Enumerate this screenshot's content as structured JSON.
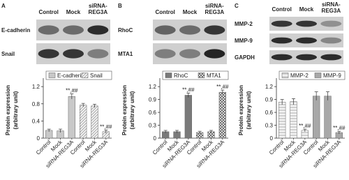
{
  "chart_data": [
    {
      "type": "bar",
      "panel": "A",
      "blot": {
        "lanes": [
          [
            "Control"
          ],
          [
            "Mock"
          ],
          [
            "siRNA-",
            "REG3A"
          ]
        ],
        "rows": [
          "E-cadherin",
          "Snail"
        ]
      },
      "ylabel": [
        "Protein expression",
        "(arbitrary unit)"
      ],
      "categories": [
        "Control",
        "Mock",
        "siRNA-REG3A",
        "Control",
        "Mock",
        "siRNA-REG3A"
      ],
      "series": [
        {
          "name": "E-cadherin",
          "color": "#c8c8c8",
          "pattern": null,
          "values": [
            0.18,
            0.17,
            0.97,
            null,
            null,
            null
          ],
          "errors": [
            0.03,
            0.04,
            0.06,
            null,
            null,
            null
          ],
          "marks": [
            null,
            null,
            "**,##",
            null,
            null,
            null
          ]
        },
        {
          "name": "Snail",
          "color": "#9a9a9a",
          "pattern": "diagonal",
          "values": [
            null,
            null,
            null,
            0.77,
            0.75,
            0.15
          ],
          "errors": [
            null,
            null,
            null,
            0.04,
            0.04,
            0.04
          ],
          "marks": [
            null,
            null,
            null,
            null,
            null,
            "**,##"
          ]
        }
      ],
      "ylim": [
        0,
        1.3
      ],
      "yticks": [
        0,
        0.4,
        0.8,
        1.2
      ]
    },
    {
      "type": "bar",
      "panel": "B",
      "blot": {
        "lanes": [
          [
            "Control"
          ],
          [
            "Mock"
          ],
          [
            "siRNA-",
            "REG3A"
          ]
        ],
        "rows": [
          "RhoC",
          "MTA1"
        ]
      },
      "ylabel": [
        "Protein expression",
        "(arbitrary unit)"
      ],
      "categories": [
        "Control",
        "Mock",
        "siRNA-REG3A",
        "Control",
        "Mock",
        "siRNA-REG3A"
      ],
      "series": [
        {
          "name": "RhoC",
          "color": "#7a7a7a",
          "pattern": null,
          "values": [
            0.15,
            0.15,
            1.0,
            null,
            null,
            null
          ],
          "errors": [
            0.03,
            0.03,
            0.05,
            null,
            null,
            null
          ],
          "marks": [
            null,
            null,
            "**,##",
            null,
            null,
            null
          ]
        },
        {
          "name": "MTA1",
          "color": "#555555",
          "pattern": "crosshatch",
          "values": [
            null,
            null,
            null,
            0.13,
            0.15,
            1.07
          ],
          "errors": [
            null,
            null,
            null,
            0.03,
            0.03,
            0.05
          ],
          "marks": [
            null,
            null,
            null,
            null,
            null,
            "**,##"
          ]
        }
      ],
      "ylim": [
        0,
        1.3
      ],
      "yticks": [
        0,
        0.3,
        0.6,
        0.9,
        1.2
      ]
    },
    {
      "type": "bar",
      "panel": "C",
      "blot": {
        "lanes": [
          [
            "Control"
          ],
          [
            "Mock"
          ],
          [
            "siRNA-",
            "REG3A"
          ]
        ],
        "rows": [
          "MMP-2",
          "MMP-9",
          "GAPDH"
        ]
      },
      "ylabel": [
        "Protein expression",
        "(arbitrary unit)"
      ],
      "categories": [
        "Control",
        "Mock",
        "siRNA-REG3A",
        "Control",
        "Mock",
        "siRNA-REG3A"
      ],
      "series": [
        {
          "name": "MMP-2",
          "color": "#9a9a9a",
          "pattern": "horizontal",
          "values": [
            0.84,
            0.85,
            0.18,
            null,
            null,
            null
          ],
          "errors": [
            0.06,
            0.07,
            0.03,
            null,
            null,
            null
          ],
          "marks": [
            null,
            null,
            "**,##",
            null,
            null,
            null
          ]
        },
        {
          "name": "MMP-9",
          "color": "#a8a8a8",
          "pattern": null,
          "values": [
            null,
            null,
            null,
            0.98,
            0.98,
            0.13
          ],
          "errors": [
            null,
            null,
            null,
            0.1,
            0.1,
            0.03
          ],
          "marks": [
            null,
            null,
            null,
            null,
            null,
            "**,##"
          ]
        }
      ],
      "ylim": [
        0,
        1.3
      ],
      "yticks": [
        0,
        0.3,
        0.6,
        0.9,
        1.2
      ]
    }
  ]
}
